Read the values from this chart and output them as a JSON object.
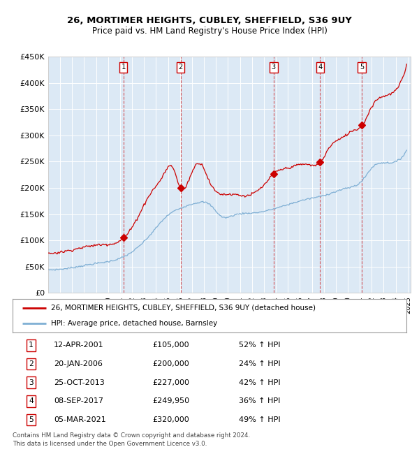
{
  "title": "26, MORTIMER HEIGHTS, CUBLEY, SHEFFIELD, S36 9UY",
  "subtitle": "Price paid vs. HM Land Registry's House Price Index (HPI)",
  "sale_dates": [
    "2001-04-12",
    "2006-01-20",
    "2013-10-25",
    "2017-09-08",
    "2021-03-05"
  ],
  "sale_prices": [
    105000,
    200000,
    227000,
    249950,
    320000
  ],
  "sale_labels": [
    "1",
    "2",
    "3",
    "4",
    "5"
  ],
  "sale_table": [
    [
      "1",
      "12-APR-2001",
      "£105,000",
      "52% ↑ HPI"
    ],
    [
      "2",
      "20-JAN-2006",
      "£200,000",
      "24% ↑ HPI"
    ],
    [
      "3",
      "25-OCT-2013",
      "£227,000",
      "42% ↑ HPI"
    ],
    [
      "4",
      "08-SEP-2017",
      "£249,950",
      "36% ↑ HPI"
    ],
    [
      "5",
      "05-MAR-2021",
      "£320,000",
      "49% ↑ HPI"
    ]
  ],
  "property_line_color": "#cc0000",
  "hpi_line_color": "#7fafd4",
  "vline_color": "#cc0000",
  "background_color": "#dce9f5",
  "plot_bg_color": "#ffffff",
  "legend_line1": "26, MORTIMER HEIGHTS, CUBLEY, SHEFFIELD, S36 9UY (detached house)",
  "legend_line2": "HPI: Average price, detached house, Barnsley",
  "footer1": "Contains HM Land Registry data © Crown copyright and database right 2024.",
  "footer2": "This data is licensed under the Open Government Licence v3.0.",
  "ylim": [
    0,
    450000
  ],
  "yticks": [
    0,
    50000,
    100000,
    150000,
    200000,
    250000,
    300000,
    350000,
    400000,
    450000
  ],
  "ytick_labels": [
    "£0",
    "£50K",
    "£100K",
    "£150K",
    "£200K",
    "£250K",
    "£300K",
    "£350K",
    "£400K",
    "£450K"
  ],
  "hpi_anchors_x": [
    1995.0,
    1997.0,
    1999.0,
    2001.33,
    2003.5,
    2005.0,
    2006.0,
    2007.5,
    2008.5,
    2009.5,
    2010.5,
    2012.0,
    2013.83,
    2015.0,
    2016.5,
    2017.75,
    2019.0,
    2020.0,
    2021.25,
    2022.0,
    2023.0,
    2024.5
  ],
  "hpi_anchors_y": [
    44000,
    48000,
    56000,
    69000,
    110000,
    148000,
    161000,
    172000,
    168000,
    145000,
    148000,
    152000,
    160000,
    168000,
    178000,
    184000,
    193000,
    200000,
    215000,
    238000,
    248000,
    258000
  ],
  "prop_anchors_x": [
    1995.0,
    1997.0,
    1999.5,
    2001.33,
    2002.5,
    2003.5,
    2004.5,
    2005.5,
    2006.0,
    2007.0,
    2007.8,
    2008.5,
    2009.5,
    2010.5,
    2011.5,
    2012.5,
    2013.0,
    2013.83,
    2015.0,
    2016.5,
    2017.75,
    2018.5,
    2019.5,
    2020.5,
    2021.25,
    2022.0,
    2023.0,
    2024.5
  ],
  "prop_anchors_y": [
    75000,
    82000,
    92000,
    105000,
    145000,
    188000,
    220000,
    235000,
    200000,
    230000,
    245000,
    210000,
    188000,
    188000,
    185000,
    195000,
    205000,
    227000,
    238000,
    245000,
    249950,
    278000,
    295000,
    310000,
    320000,
    355000,
    375000,
    405000
  ]
}
